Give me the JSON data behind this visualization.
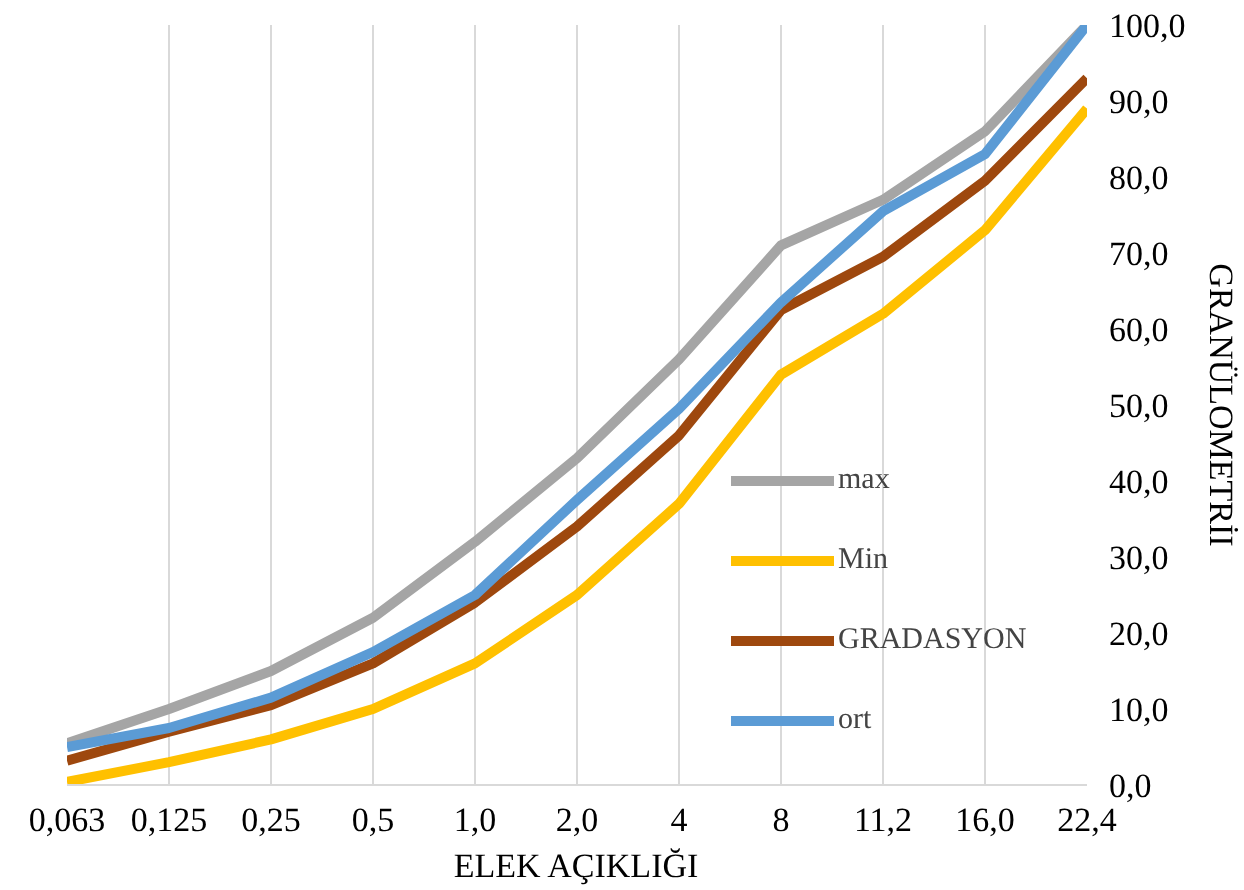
{
  "chart_data": {
    "type": "line",
    "xlabel": "ELEK AÇIKLIĞI",
    "ylabel": "GRANÜLOMETRİI",
    "categories": [
      "0,063",
      "0,125",
      "0,25",
      "0,5",
      "1,0",
      "2,0",
      "4",
      "8",
      "11,2",
      "16,0",
      "22,4"
    ],
    "series": [
      {
        "name": "max",
        "color": "#a5a5a5",
        "values": [
          5.5,
          10,
          15,
          22,
          32,
          43,
          56,
          71,
          77,
          86,
          100
        ]
      },
      {
        "name": "Min",
        "color": "#ffc000",
        "values": [
          0.4,
          3,
          6,
          10,
          16,
          25,
          37,
          54,
          62,
          73,
          89
        ]
      },
      {
        "name": "GRADASYON",
        "color": "#9e480e",
        "values": [
          3.2,
          7,
          10.5,
          16,
          24,
          34,
          46,
          62.5,
          69.5,
          79.5,
          93
        ]
      },
      {
        "name": "ort",
        "color": "#5b9bd5",
        "values": [
          5,
          7.5,
          11.5,
          17.5,
          25,
          37.5,
          49.5,
          63.5,
          75.5,
          83,
          100
        ]
      }
    ],
    "ylim": [
      0,
      100
    ],
    "yticks": [
      {
        "value": 0,
        "label": "0,0"
      },
      {
        "value": 10,
        "label": "10,0"
      },
      {
        "value": 20,
        "label": "20,0"
      },
      {
        "value": 30,
        "label": "30,0"
      },
      {
        "value": 40,
        "label": "40,0"
      },
      {
        "value": 50,
        "label": "50,0"
      },
      {
        "value": 60,
        "label": "60,0"
      },
      {
        "value": 70,
        "label": "70,0"
      },
      {
        "value": 80,
        "label": "80,0"
      },
      {
        "value": 90,
        "label": "90,0"
      },
      {
        "value": 100,
        "label": "100,0"
      }
    ],
    "grid": "x",
    "legend": "right",
    "marker": "none",
    "line_style": "solid"
  }
}
